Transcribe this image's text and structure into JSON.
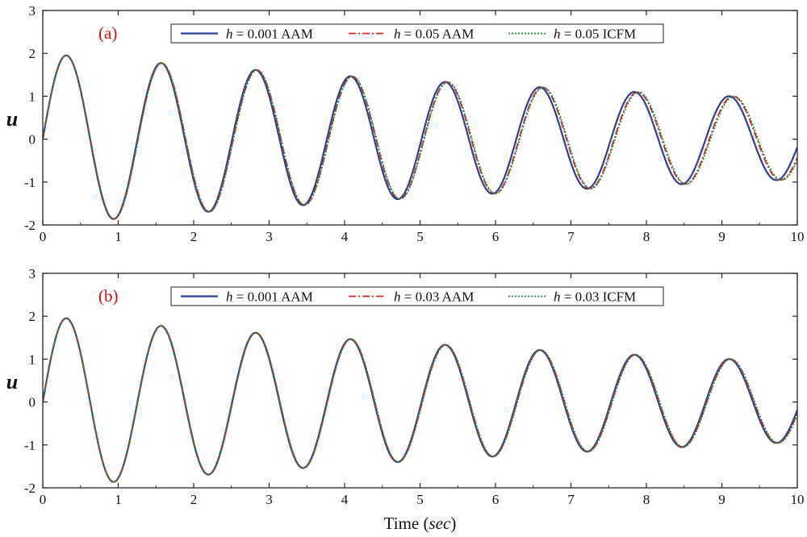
{
  "chart_data": [
    {
      "type": "line",
      "panel_label": "(a)",
      "ylabel": "u",
      "xlim": [
        0,
        10
      ],
      "ylim": [
        -2,
        3
      ],
      "xticks": [
        0,
        1,
        2,
        3,
        4,
        5,
        6,
        7,
        8,
        9,
        10
      ],
      "yticks": [
        -2,
        -1,
        0,
        1,
        2,
        3
      ],
      "grid": false,
      "legend_placement": "top-center",
      "series": [
        {
          "name_var": "h",
          "name_rest": " = 0.001  AAM",
          "color": "#2b3f9a",
          "dash": "solid",
          "period": 1.255,
          "phase_shift": 0.0,
          "amplitude": 2.0,
          "decay": 0.076
        },
        {
          "name_var": "h",
          "name_rest": " = 0.05  AAM",
          "color": "#e0241c",
          "dash": "dashdot",
          "period": 1.262,
          "phase_shift": 0.0,
          "amplitude": 2.0,
          "decay": 0.076
        },
        {
          "name_var": "h",
          "name_rest": " = 0.05  ICFM",
          "color": "#1f8a3a",
          "dash": "dotted",
          "period": 1.264,
          "phase_shift": 0.0,
          "amplitude": 2.0,
          "decay": 0.076
        }
      ],
      "peaks": {
        "x": [
          0.3,
          1.57,
          2.83,
          4.09,
          5.35,
          6.61,
          7.87,
          9.12
        ],
        "y": [
          1.97,
          1.84,
          1.7,
          1.56,
          1.42,
          1.29,
          1.16,
          1.03
        ]
      },
      "troughs": {
        "x": [
          0.95,
          2.21,
          3.47,
          4.73,
          5.98,
          7.24,
          8.5,
          9.76
        ],
        "y": [
          -1.88,
          -1.74,
          -1.61,
          -1.48,
          -1.35,
          -1.22,
          -1.09,
          -0.97
        ]
      }
    },
    {
      "type": "line",
      "panel_label": "(b)",
      "ylabel": "u",
      "xlabel_main": "Time  (",
      "xlabel_unit": "sec",
      "xlabel_close": ")",
      "xlim": [
        0,
        10
      ],
      "ylim": [
        -2,
        3
      ],
      "xticks": [
        0,
        1,
        2,
        3,
        4,
        5,
        6,
        7,
        8,
        9,
        10
      ],
      "yticks": [
        -2,
        -1,
        0,
        1,
        2,
        3
      ],
      "grid": false,
      "legend_placement": "top-center",
      "series": [
        {
          "name_var": "h",
          "name_rest": " = 0.001  AAM",
          "color": "#2b3f9a",
          "dash": "solid",
          "period": 1.255,
          "phase_shift": 0.0,
          "amplitude": 2.0,
          "decay": 0.076
        },
        {
          "name_var": "h",
          "name_rest": " = 0.03  AAM",
          "color": "#e0241c",
          "dash": "dashdot",
          "period": 1.257,
          "phase_shift": 0.0,
          "amplitude": 2.0,
          "decay": 0.076
        },
        {
          "name_var": "h",
          "name_rest": " = 0.03  ICFM",
          "color": "#1f8a3a",
          "dash": "dotted",
          "period": 1.258,
          "phase_shift": 0.0,
          "amplitude": 2.0,
          "decay": 0.076
        }
      ],
      "peaks": {
        "x": [
          0.3,
          1.57,
          2.83,
          4.09,
          5.35,
          6.61,
          7.87,
          9.12
        ],
        "y": [
          1.97,
          1.84,
          1.7,
          1.56,
          1.42,
          1.29,
          1.16,
          1.03
        ]
      },
      "troughs": {
        "x": [
          0.95,
          2.21,
          3.47,
          4.73,
          5.98,
          7.24,
          8.5,
          9.76
        ],
        "y": [
          -1.88,
          -1.74,
          -1.61,
          -1.48,
          -1.35,
          -1.22,
          -1.09,
          -0.97
        ]
      }
    }
  ]
}
